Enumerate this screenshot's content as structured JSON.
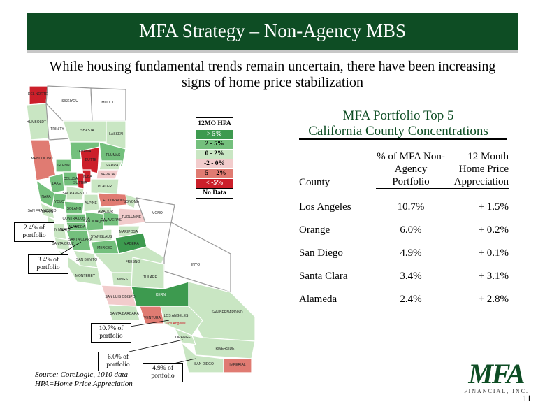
{
  "title": "MFA Strategy – Non-Agency MBS",
  "subtitle": "While housing fundamental trends remain uncertain, there have been increasing signs of home price stabilization",
  "colors": {
    "brand_green": "#0e4d24"
  },
  "legend": {
    "header": "12MO HPA",
    "items": [
      {
        "label": "> 5%",
        "color": "#3d9a4f"
      },
      {
        "label": "2 - 5%",
        "color": "#74c07d"
      },
      {
        "label": "0 - 2%",
        "color": "#c9e6c3"
      },
      {
        "label": "-2 - 0%",
        "color": "#f2cccc"
      },
      {
        "label": "-5 - -2%",
        "color": "#e07b72"
      },
      {
        "label": "< -5%",
        "color": "#cc1f2a"
      },
      {
        "label": "No Data",
        "color": "#ffffff"
      }
    ]
  },
  "map": {
    "counties": [
      "DEL NORTE",
      "SISKIYOU",
      "MODOC",
      "HUMBOLDT",
      "TRINITY",
      "SHASTA",
      "LASSEN",
      "TEHAMA",
      "PLUMAS",
      "MENDOCINO",
      "GLENN",
      "BUTTE",
      "SIERRA",
      "NEVADA",
      "COLUSA",
      "YUBA",
      "PLACER",
      "LAKE",
      "SUTTER",
      "EL DORADO",
      "SONOMA",
      "NAPA",
      "YOLO",
      "SACRAMENTO",
      "ALPINE",
      "AMADOR",
      "SOLANO",
      "MARIN",
      "CONTRA COSTA",
      "SAN FRANCISCO",
      "SAN JOAQUIN",
      "CALAVERAS",
      "TUOLUMNE",
      "MONO",
      "ALAMEDA",
      "SAN MATEO",
      "STANISLAUS",
      "SANTA CLARA",
      "MARIPOSA",
      "SANTA CRUZ",
      "MERCED",
      "MADERA",
      "FRESNO",
      "INYO",
      "SAN BENITO",
      "MONTEREY",
      "TULARE",
      "KINGS",
      "SAN LUIS OBISPO",
      "KERN",
      "SAN BERNARDINO",
      "SANTA BARBARA",
      "VENTURA",
      "LOS ANGELES",
      "Los Angeles",
      "RIVERSIDE",
      "ORANGE",
      "SAN DIEGO",
      "IMPERIAL"
    ]
  },
  "callouts": [
    "2.4% of portfolio",
    "3.4% of portfolio",
    "10.7% of portfolio",
    "6.0% of portfolio",
    "4.9% of portfolio"
  ],
  "portfolio": {
    "title_line1": "MFA Portfolio Top 5",
    "title_line2": "California County Concentrations",
    "headers": {
      "county": "County",
      "pct": "% of MFA Non-Agency Portfolio",
      "hpa": "12 Month Home Price Appreciation"
    },
    "rows": [
      {
        "county": "Los Angeles",
        "pct": "10.7%",
        "hpa": "+ 1.5%"
      },
      {
        "county": "Orange",
        "pct": "6.0%",
        "hpa": "+ 0.2%"
      },
      {
        "county": "San Diego",
        "pct": "4.9%",
        "hpa": "+ 0.1%"
      },
      {
        "county": "Santa Clara",
        "pct": "3.4%",
        "hpa": "+ 3.1%"
      },
      {
        "county": "Alameda",
        "pct": "2.4%",
        "hpa": "+ 2.8%"
      }
    ]
  },
  "source_line1": "Source: CoreLogic, 1010 data",
  "source_line2": "HPA=Home Price Appreciation",
  "logo_text": "MFA",
  "logo_sub": "FINANCIAL, INC.",
  "page_number": "11"
}
